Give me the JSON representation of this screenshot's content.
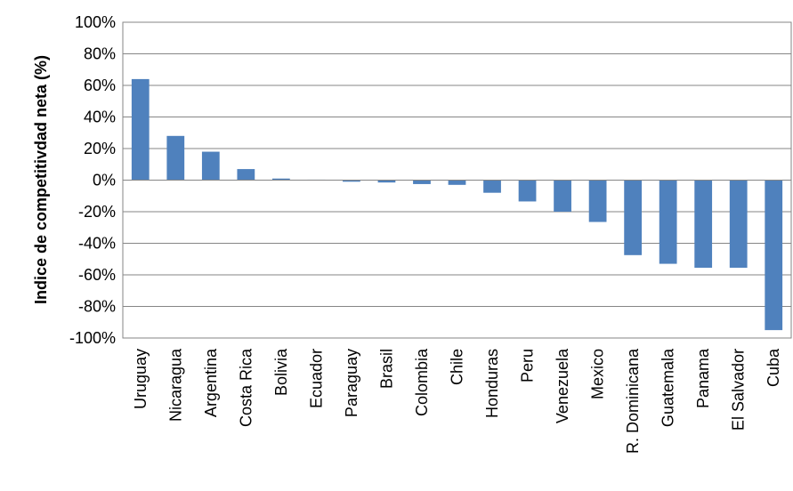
{
  "chart_data": {
    "type": "bar",
    "title": "",
    "xlabel": "",
    "ylabel": "Indice de competitivdad neta (%)",
    "ylim": [
      -100,
      100
    ],
    "y_ticks": [
      "100%",
      "80%",
      "60%",
      "40%",
      "20%",
      "0%",
      "-20%",
      "-40%",
      "-60%",
      "-80%",
      "-100%"
    ],
    "grid": true,
    "legend": "none",
    "bar_color": "#4f81bd",
    "categories": [
      "Uruguay",
      "Nicaragua",
      "Argentina",
      "Costa Rica",
      "Bolivia",
      "Ecuador",
      "Paraguay",
      "Brasil",
      "Colombia",
      "Chile",
      "Honduras",
      "Peru",
      "Venezuela",
      "Mexico",
      "R. Dominicana",
      "Guatemala",
      "Panama",
      "El Salvador",
      "Cuba"
    ],
    "values": [
      64,
      28,
      18,
      7,
      1,
      0.3,
      -1,
      -1.5,
      -2.5,
      -3,
      -8,
      -13.5,
      -20,
      -26.5,
      -47.5,
      -53,
      -55.5,
      -55.5,
      -95
    ]
  }
}
